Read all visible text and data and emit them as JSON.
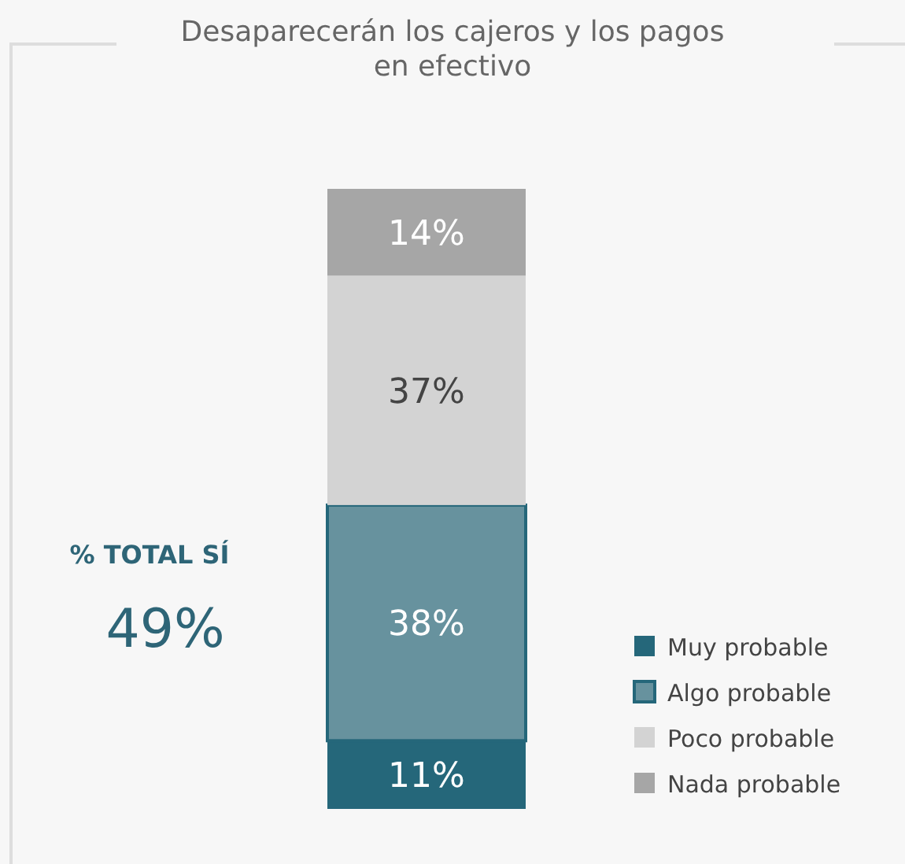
{
  "chart_data": {
    "type": "bar",
    "title": "Desaparecerán los cajeros y los pagos\nen efectivo",
    "categories": [
      null
    ],
    "stacked": true,
    "legend": "bottom right",
    "annotations": [
      "% TOTAL SÍ",
      "49%"
    ],
    "series": [
      {
        "name": "Muy probable",
        "color": "#25677a",
        "values": [
          11
        ],
        "value_labels": [
          "11%"
        ]
      },
      {
        "name": "Algo probable",
        "color": "#67929e",
        "values": [
          38
        ],
        "value_labels": [
          "38%"
        ]
      },
      {
        "name": "Poco probable",
        "color": "#d3d3d3",
        "values": [
          37
        ],
        "value_labels": [
          "37%"
        ]
      },
      {
        "name": "Nada probable",
        "color": "#a6a6a6",
        "values": [
          14
        ],
        "value_labels": [
          "14%"
        ]
      }
    ]
  }
}
